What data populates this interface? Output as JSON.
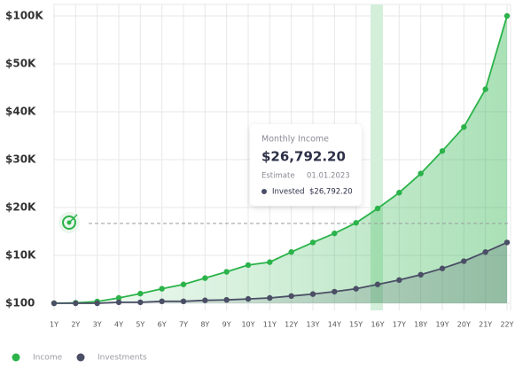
{
  "chart_data": {
    "type": "line",
    "categories": [
      "1Y",
      "2Y",
      "3Y",
      "4Y",
      "5Y",
      "6Y",
      "7Y",
      "8Y",
      "9Y",
      "10Y",
      "11Y",
      "12Y",
      "13Y",
      "14Y",
      "15Y",
      "16Y",
      "17Y",
      "18Y",
      "19Y",
      "20Y",
      "21Y",
      "22Y"
    ],
    "series": [
      {
        "name": "Income",
        "color": "#2bb34a",
        "values": [
          100,
          200,
          470,
          1200,
          2100,
          3100,
          4000,
          5300,
          6600,
          8000,
          8600,
          10700,
          12700,
          14600,
          16800,
          19800,
          23100,
          27100,
          31800,
          36800,
          44700,
          100000
        ]
      },
      {
        "name": "Investments",
        "color": "#4b4f66",
        "values": [
          100,
          100,
          100,
          300,
          300,
          500,
          500,
          700,
          800,
          1000,
          1200,
          1600,
          2000,
          2500,
          3100,
          4000,
          4900,
          6000,
          7300,
          8800,
          10700,
          12700
        ]
      }
    ],
    "ylim": [
      100,
      100000
    ],
    "yticks": [
      {
        "value": 100,
        "label": "$100"
      },
      {
        "value": 10000,
        "label": "$10K"
      },
      {
        "value": 20000,
        "label": "$20K"
      },
      {
        "value": 30000,
        "label": "$30K"
      },
      {
        "value": 40000,
        "label": "$40K"
      },
      {
        "value": 50000,
        "label": "$50K"
      },
      {
        "value": 100000,
        "label": "$100K"
      }
    ],
    "grid": true,
    "legend": "bottom-left",
    "tooltip": {
      "title": "Monthly Income",
      "amount": "$26,792.20",
      "estimate_label": "Estimate",
      "estimate_date": "01.01.2023",
      "invested_label": "Invested",
      "invested_amount": "$26,792.20"
    }
  }
}
